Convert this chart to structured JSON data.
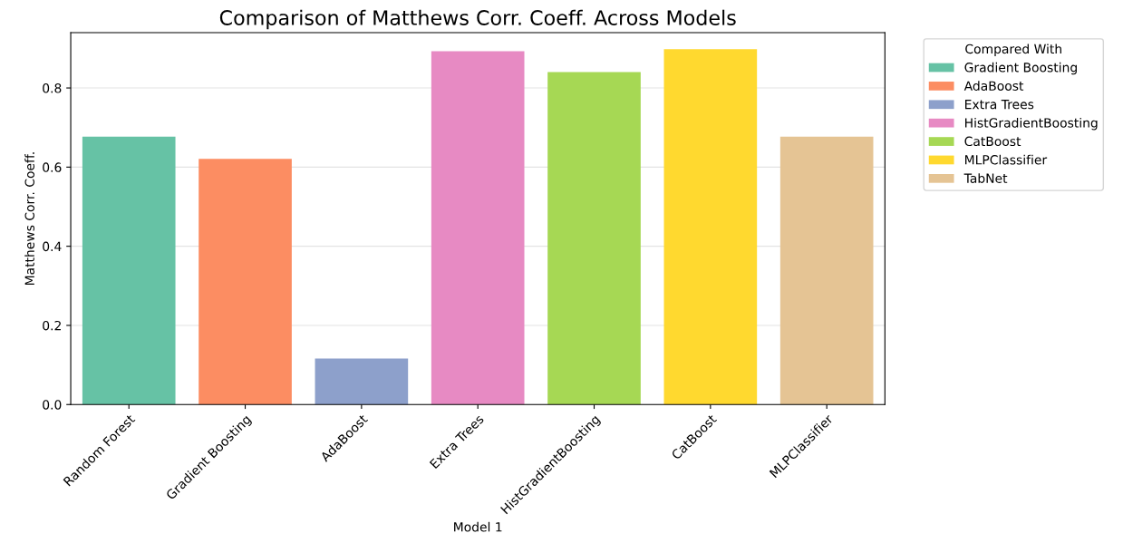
{
  "chart_data": {
    "type": "bar",
    "title": "Comparison of Matthews Corr. Coeff. Across Models",
    "xlabel": "Model 1",
    "ylabel": "Matthews Corr. Coeff.",
    "legend_title": "Compared With",
    "categories": [
      "Random Forest",
      "Gradient Boosting",
      "AdaBoost",
      "Extra Trees",
      "HistGradientBoosting",
      "CatBoost",
      "MLPClassifier"
    ],
    "series": [
      {
        "name": "Gradient Boosting",
        "color": "#66c2a5",
        "values": [
          0.677,
          null,
          null,
          null,
          null,
          null,
          null
        ]
      },
      {
        "name": "AdaBoost",
        "color": "#fc8d62",
        "values": [
          null,
          0.621,
          null,
          null,
          null,
          null,
          null
        ]
      },
      {
        "name": "Extra Trees",
        "color": "#8da0cb",
        "values": [
          null,
          null,
          0.116,
          null,
          null,
          null,
          null
        ]
      },
      {
        "name": "HistGradientBoosting",
        "color": "#e78ac3",
        "values": [
          null,
          null,
          null,
          0.893,
          null,
          null,
          null
        ]
      },
      {
        "name": "CatBoost",
        "color": "#a6d854",
        "values": [
          null,
          null,
          null,
          null,
          0.84,
          null,
          null
        ]
      },
      {
        "name": "MLPClassifier",
        "color": "#ffd92f",
        "values": [
          null,
          null,
          null,
          null,
          null,
          0.898,
          null
        ]
      },
      {
        "name": "TabNet",
        "color": "#e5c494",
        "values": [
          null,
          null,
          null,
          null,
          null,
          null,
          0.677
        ]
      }
    ],
    "ylim": [
      0,
      0.94
    ],
    "yticks": [
      {
        "value": 0,
        "label": "0.0"
      },
      0.2,
      0.4,
      0.6,
      0.8
    ],
    "grid": "y",
    "legend": "top right"
  }
}
